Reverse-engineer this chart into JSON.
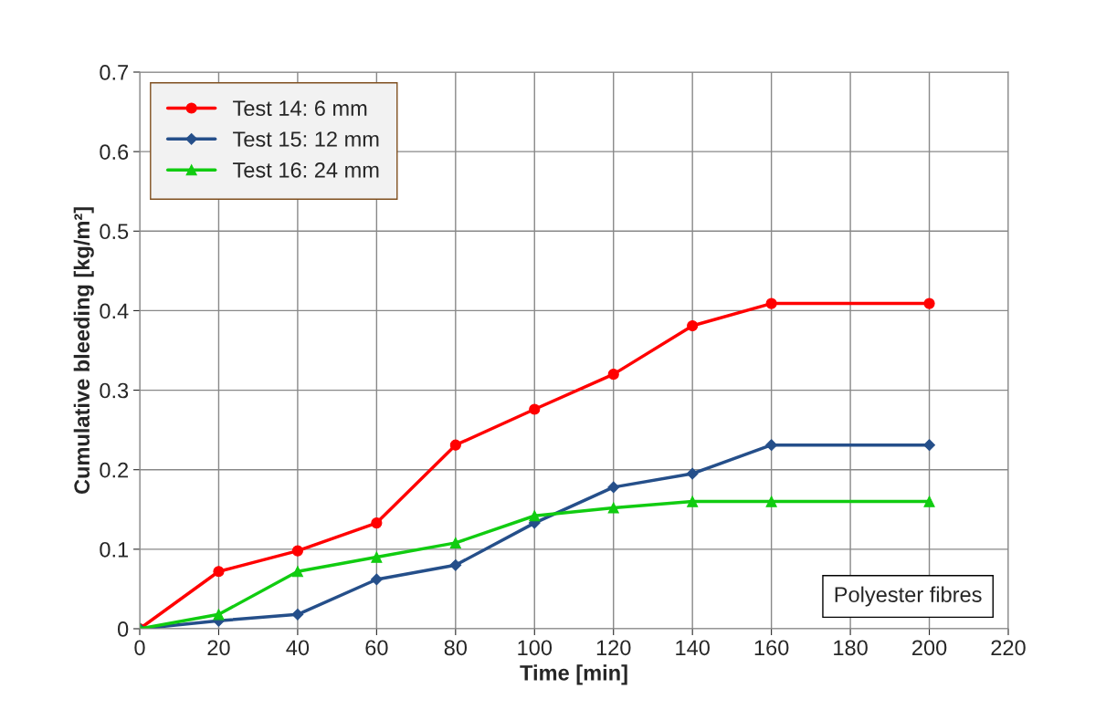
{
  "chart_data": {
    "type": "line",
    "xlabel": "Time [min]",
    "ylabel": "Cumulative bleeding [kg/m²]",
    "x": [
      0,
      20,
      40,
      60,
      80,
      100,
      120,
      140,
      160,
      200
    ],
    "series": [
      {
        "name": "Test 14: 6 mm",
        "color": "#ff0000",
        "marker": "circle",
        "values": [
          0,
          0.072,
          0.098,
          0.133,
          0.231,
          0.276,
          0.32,
          0.381,
          0.409,
          0.409
        ]
      },
      {
        "name": "Test 15: 12 mm",
        "color": "#254f8a",
        "marker": "diamond",
        "values": [
          0,
          0.01,
          0.018,
          0.062,
          0.08,
          0.133,
          0.178,
          0.195,
          0.231,
          0.231
        ]
      },
      {
        "name": "Test 16: 24 mm",
        "color": "#11cc11",
        "marker": "triangle",
        "values": [
          0,
          0.018,
          0.072,
          0.09,
          0.108,
          0.142,
          0.152,
          0.16,
          0.16,
          0.16
        ]
      }
    ],
    "xlim": [
      0,
      220
    ],
    "xticks": [
      0,
      20,
      40,
      60,
      80,
      100,
      120,
      140,
      160,
      180,
      200,
      220
    ],
    "ylim": [
      0,
      0.7
    ],
    "yticks": [
      0,
      0.1,
      0.2,
      0.3,
      0.4,
      0.5,
      0.6,
      0.7
    ],
    "grid": true,
    "legend": "top left",
    "line_style": "solid",
    "annotations": [
      "Polyester fibres"
    ]
  }
}
